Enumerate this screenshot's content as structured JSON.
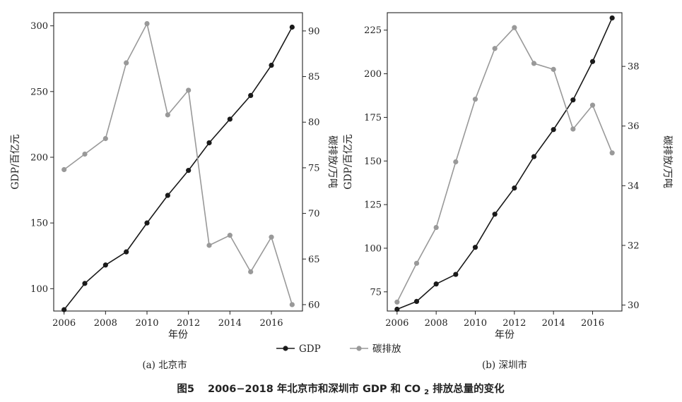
{
  "figure": {
    "title_prefix": "图5",
    "title_main": "2006−2018 年北京市和深圳市 GDP 和 CO",
    "title_sub": "2",
    "title_suffix": " 排放总量的变化"
  },
  "legend": {
    "gdp": "GDP",
    "carbon": "碳排放",
    "position": "bottom-center"
  },
  "colors": {
    "gdp": "#1a1a1a",
    "carbon": "#999999",
    "axis": "#222222"
  },
  "chart_data": [
    {
      "type": "line",
      "subtitle": "(a) 北京市",
      "xlabel": "年份",
      "ylabel": "GDP/百亿元",
      "y2label": "碳排放/万吨",
      "x": [
        2006,
        2007,
        2008,
        2009,
        2010,
        2011,
        2012,
        2013,
        2014,
        2015,
        2016,
        2017
      ],
      "xlim": [
        2005.5,
        2017.5
      ],
      "xticks": [
        2006,
        2008,
        2010,
        2012,
        2014,
        2016
      ],
      "ylim": [
        83,
        310
      ],
      "yticks": [
        100,
        150,
        200,
        250,
        300
      ],
      "y2lim": [
        59.3,
        92
      ],
      "y2ticks": [
        60,
        65,
        70,
        75,
        80,
        85,
        90
      ],
      "grid": false,
      "series": [
        {
          "name": "GDP",
          "axis": "left",
          "values": [
            84,
            104,
            118,
            128,
            150,
            171,
            190,
            211,
            229,
            247,
            270,
            299
          ]
        },
        {
          "name": "碳排放",
          "axis": "right",
          "values": [
            74.8,
            76.5,
            78.2,
            86.5,
            90.8,
            80.8,
            83.5,
            66.5,
            67.6,
            63.6,
            67.4,
            60.0
          ]
        }
      ]
    },
    {
      "type": "line",
      "subtitle": "(b) 深圳市",
      "xlabel": "年份",
      "ylabel": "GDP/百亿元",
      "y2label": "碳排放/万吨",
      "x": [
        2006,
        2007,
        2008,
        2009,
        2010,
        2011,
        2012,
        2013,
        2014,
        2015,
        2016,
        2017
      ],
      "xlim": [
        2005.5,
        2017.5
      ],
      "xticks": [
        2006,
        2008,
        2010,
        2012,
        2014,
        2016
      ],
      "ylim": [
        64,
        235
      ],
      "yticks": [
        75,
        100,
        125,
        150,
        175,
        200,
        225
      ],
      "y2lim": [
        29.8,
        39.8
      ],
      "y2ticks": [
        30,
        32,
        34,
        36,
        38
      ],
      "grid": false,
      "series": [
        {
          "name": "GDP",
          "axis": "left",
          "values": [
            65,
            69.5,
            79.5,
            85,
            100.5,
            119.5,
            134.5,
            152.5,
            168,
            185,
            207,
            232
          ]
        },
        {
          "name": "碳排放",
          "axis": "right",
          "values": [
            30.1,
            31.4,
            32.6,
            34.8,
            36.9,
            38.6,
            39.3,
            38.1,
            37.9,
            35.9,
            36.7,
            35.1
          ]
        }
      ]
    }
  ]
}
